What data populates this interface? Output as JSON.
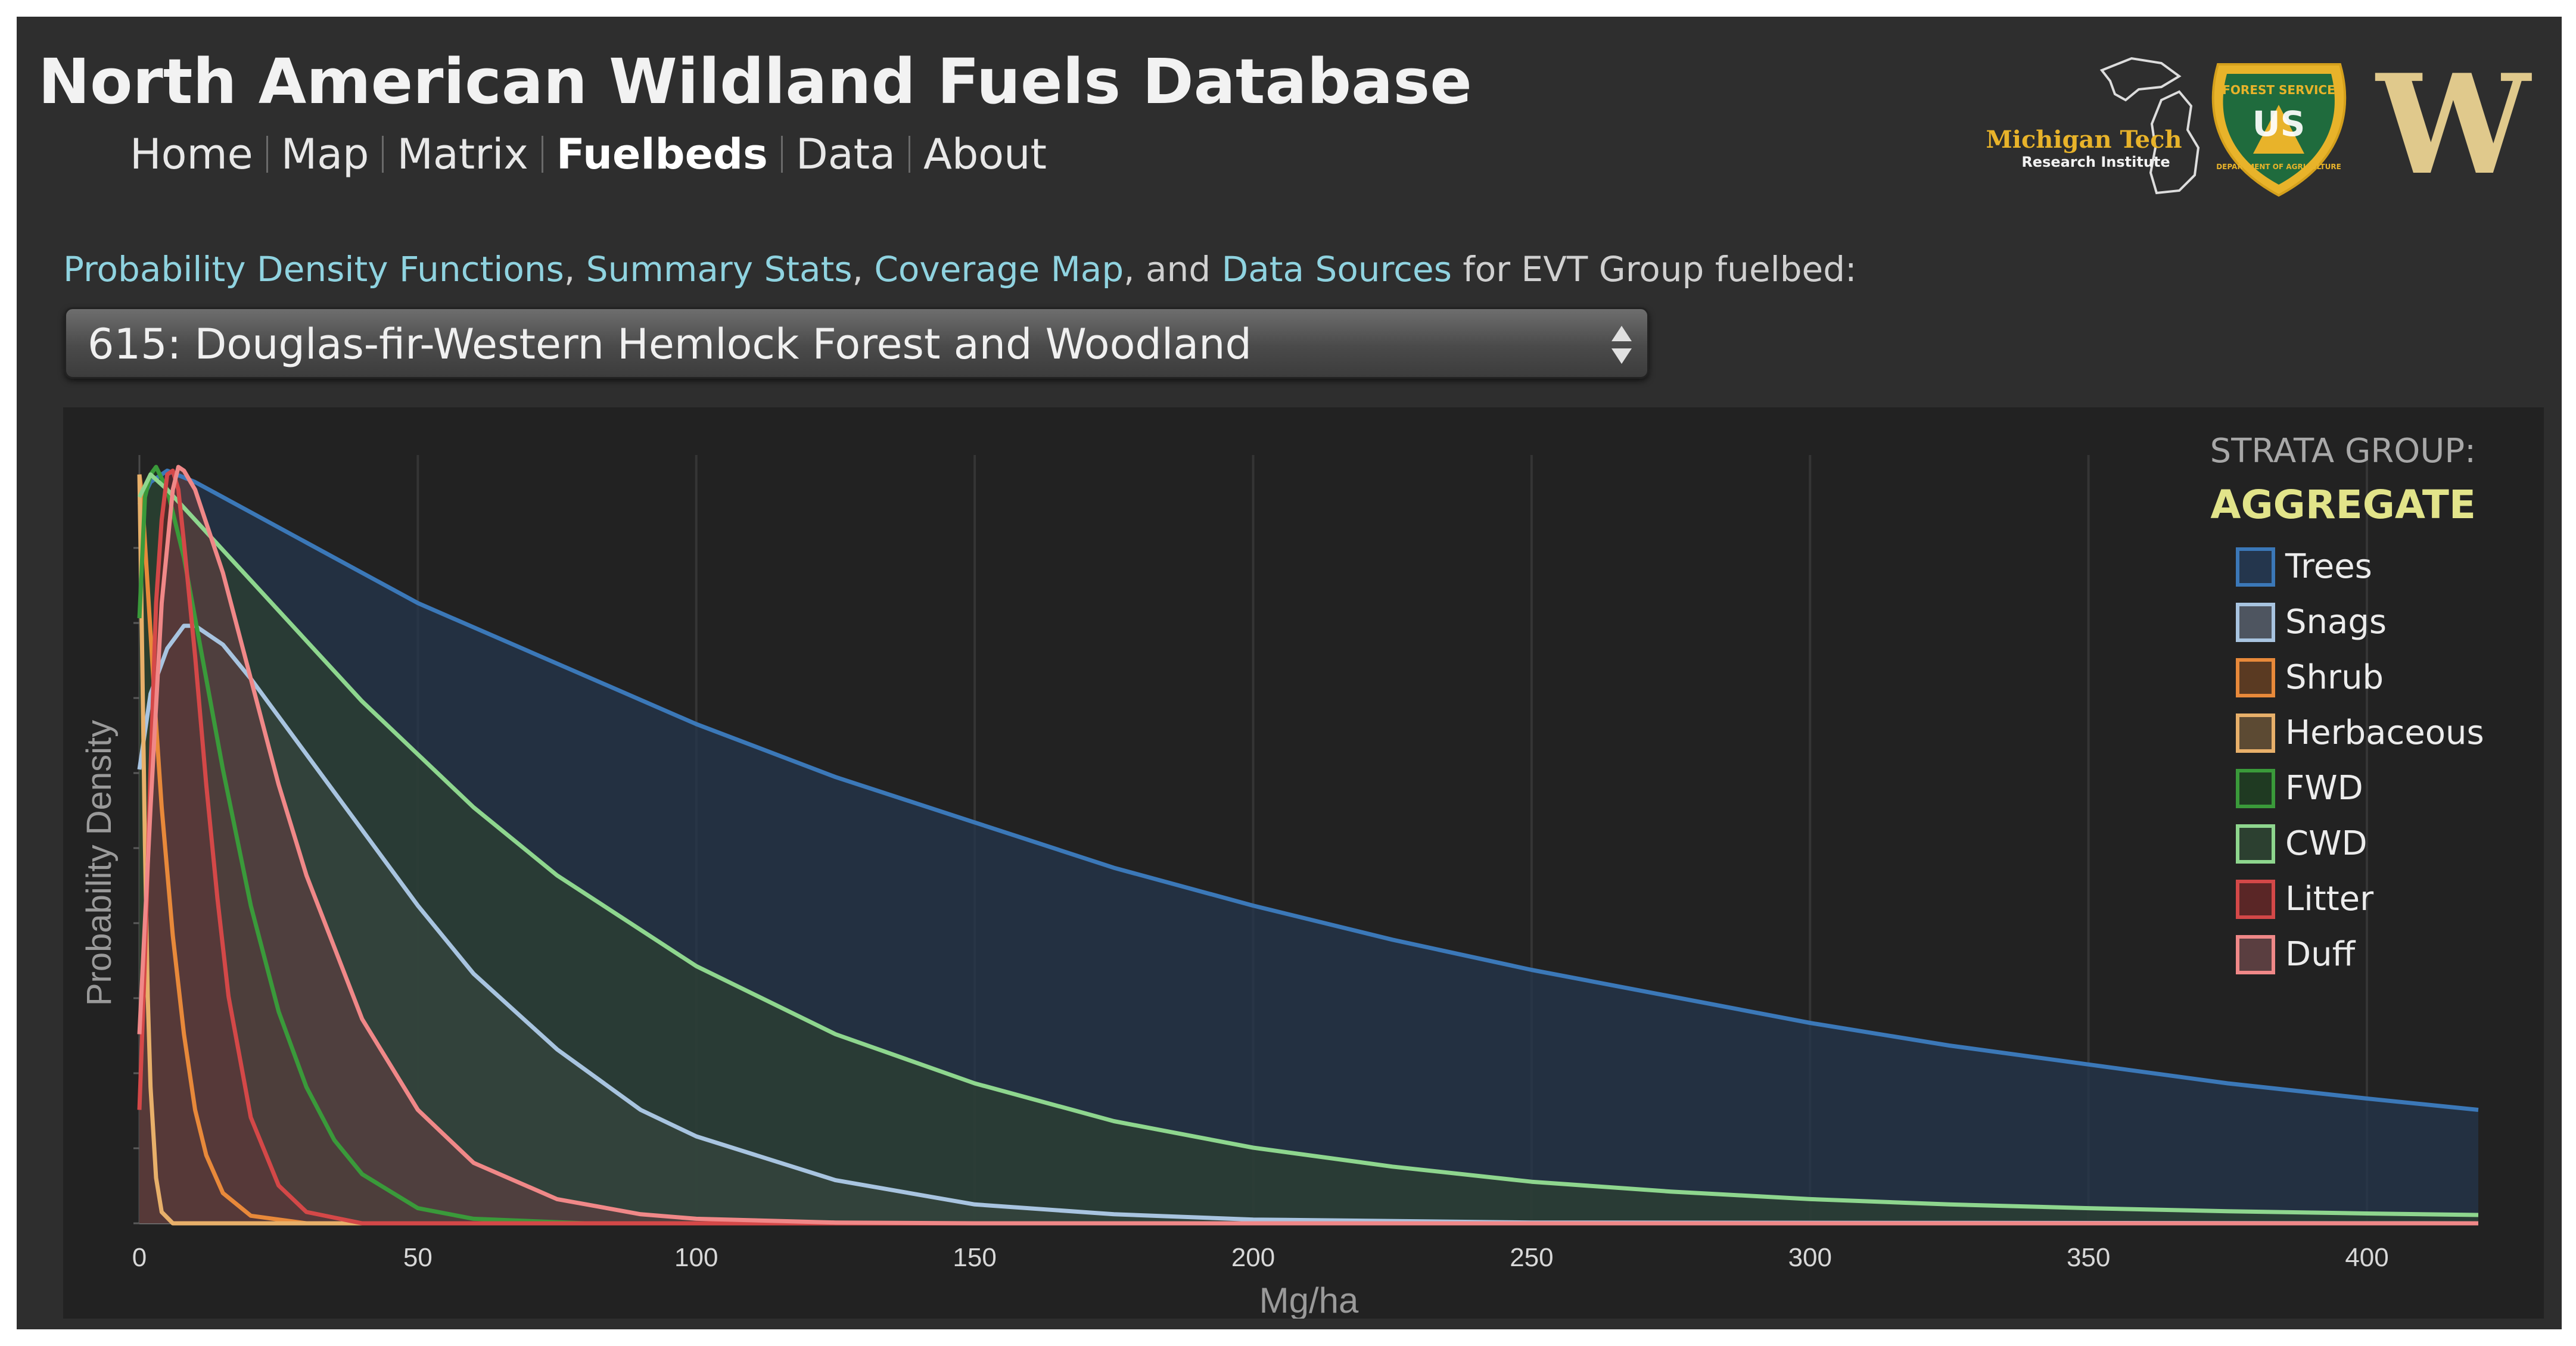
{
  "header": {
    "title": "North American Wildland Fuels Database",
    "nav": [
      "Home",
      "Map",
      "Matrix",
      "Fuelbeds",
      "Data",
      "About"
    ],
    "active_nav": "Fuelbeds",
    "logos": {
      "mtri_line1": "Michigan Tech",
      "mtri_line2": "Research Institute",
      "usfs_top": "FOREST SERVICE",
      "usfs_middle": "US",
      "usfs_bottom": "DEPARTMENT OF AGRICULTURE",
      "uw": "W"
    }
  },
  "intro": {
    "link_pdf": "Probability Density Functions",
    "sep1": ", ",
    "link_stats": "Summary Stats",
    "sep2": ", ",
    "link_map": "Coverage Map",
    "sep3": ", and ",
    "link_sources": "Data Sources",
    "suffix": " for EVT Group fuelbed:"
  },
  "fuelbed_select": {
    "value": "615: Douglas-fir-Western Hemlock Forest and Woodland"
  },
  "chart_data": {
    "type": "area",
    "title": "",
    "xlabel": "Mg/ha",
    "ylabel": "Probability Density",
    "xlim": [
      0,
      420
    ],
    "ylim": [
      0,
      1.0
    ],
    "xticks": [
      0,
      50,
      100,
      150,
      200,
      250,
      300,
      350,
      400
    ],
    "grid": true,
    "legend_title": "STRATA GROUP:",
    "legend_subtitle": "AGGREGATE",
    "legend_position": "right",
    "series": [
      {
        "name": "Trees",
        "color": "#3b78b8",
        "fill": "#24364d",
        "values": [
          [
            0,
            0.95
          ],
          [
            2,
            0.98
          ],
          [
            5,
            0.995
          ],
          [
            10,
            0.98
          ],
          [
            20,
            0.94
          ],
          [
            30,
            0.9
          ],
          [
            40,
            0.86
          ],
          [
            50,
            0.82
          ],
          [
            75,
            0.74
          ],
          [
            100,
            0.66
          ],
          [
            125,
            0.59
          ],
          [
            150,
            0.53
          ],
          [
            175,
            0.47
          ],
          [
            200,
            0.42
          ],
          [
            225,
            0.375
          ],
          [
            250,
            0.335
          ],
          [
            275,
            0.3
          ],
          [
            300,
            0.265
          ],
          [
            325,
            0.235
          ],
          [
            350,
            0.21
          ],
          [
            375,
            0.185
          ],
          [
            400,
            0.165
          ],
          [
            420,
            0.15
          ]
        ]
      },
      {
        "name": "Snags",
        "color": "#a8c4e0",
        "fill": "#4e5560",
        "values": [
          [
            0,
            0.6
          ],
          [
            2,
            0.7
          ],
          [
            5,
            0.76
          ],
          [
            8,
            0.79
          ],
          [
            10,
            0.79
          ],
          [
            15,
            0.765
          ],
          [
            20,
            0.72
          ],
          [
            30,
            0.62
          ],
          [
            40,
            0.52
          ],
          [
            50,
            0.42
          ],
          [
            60,
            0.33
          ],
          [
            75,
            0.23
          ],
          [
            90,
            0.15
          ],
          [
            100,
            0.115
          ],
          [
            125,
            0.057
          ],
          [
            150,
            0.025
          ],
          [
            175,
            0.012
          ],
          [
            200,
            0.005
          ],
          [
            250,
            0.001
          ],
          [
            420,
            0
          ]
        ]
      },
      {
        "name": "Shrub",
        "color": "#e8893a",
        "fill": "#5a3a22",
        "values": [
          [
            0,
            0.99
          ],
          [
            0.5,
            0.96
          ],
          [
            1,
            0.9
          ],
          [
            2,
            0.78
          ],
          [
            3,
            0.66
          ],
          [
            4,
            0.55
          ],
          [
            6,
            0.38
          ],
          [
            8,
            0.25
          ],
          [
            10,
            0.15
          ],
          [
            12,
            0.09
          ],
          [
            15,
            0.04
          ],
          [
            20,
            0.01
          ],
          [
            30,
            0
          ],
          [
            420,
            0
          ]
        ]
      },
      {
        "name": "Herbaceous",
        "color": "#e8b06a",
        "fill": "#5c4a33",
        "values": [
          [
            0,
            0.99
          ],
          [
            0.5,
            0.75
          ],
          [
            1,
            0.5
          ],
          [
            1.5,
            0.3
          ],
          [
            2,
            0.18
          ],
          [
            3,
            0.06
          ],
          [
            4,
            0.015
          ],
          [
            6,
            0
          ],
          [
            420,
            0
          ]
        ]
      },
      {
        "name": "FWD",
        "color": "#3a9a3a",
        "fill": "#1f3a22",
        "values": [
          [
            0,
            0.8
          ],
          [
            1,
            0.96
          ],
          [
            2,
            0.99
          ],
          [
            3,
            1.0
          ],
          [
            5,
            0.97
          ],
          [
            8,
            0.88
          ],
          [
            10,
            0.8
          ],
          [
            15,
            0.6
          ],
          [
            20,
            0.42
          ],
          [
            25,
            0.28
          ],
          [
            30,
            0.18
          ],
          [
            35,
            0.11
          ],
          [
            40,
            0.065
          ],
          [
            50,
            0.02
          ],
          [
            60,
            0.006
          ],
          [
            80,
            0
          ],
          [
            420,
            0
          ]
        ]
      },
      {
        "name": "CWD",
        "color": "#8ed68e",
        "fill": "#2c4030",
        "values": [
          [
            0,
            0.96
          ],
          [
            2,
            0.99
          ],
          [
            5,
            0.97
          ],
          [
            10,
            0.93
          ],
          [
            20,
            0.85
          ],
          [
            30,
            0.77
          ],
          [
            40,
            0.69
          ],
          [
            50,
            0.62
          ],
          [
            60,
            0.55
          ],
          [
            75,
            0.46
          ],
          [
            100,
            0.34
          ],
          [
            125,
            0.25
          ],
          [
            150,
            0.185
          ],
          [
            175,
            0.135
          ],
          [
            200,
            0.1
          ],
          [
            225,
            0.075
          ],
          [
            250,
            0.055
          ],
          [
            275,
            0.042
          ],
          [
            300,
            0.032
          ],
          [
            325,
            0.025
          ],
          [
            350,
            0.02
          ],
          [
            375,
            0.016
          ],
          [
            400,
            0.013
          ],
          [
            420,
            0.011
          ]
        ]
      },
      {
        "name": "Litter",
        "color": "#d44848",
        "fill": "#5a2626",
        "values": [
          [
            0,
            0.15
          ],
          [
            1,
            0.35
          ],
          [
            2,
            0.6
          ],
          [
            3,
            0.82
          ],
          [
            4,
            0.93
          ],
          [
            5,
            0.99
          ],
          [
            6,
            0.995
          ],
          [
            7,
            0.97
          ],
          [
            8,
            0.9
          ],
          [
            10,
            0.75
          ],
          [
            12,
            0.58
          ],
          [
            14,
            0.43
          ],
          [
            16,
            0.3
          ],
          [
            20,
            0.14
          ],
          [
            25,
            0.05
          ],
          [
            30,
            0.015
          ],
          [
            40,
            0
          ],
          [
            420,
            0
          ]
        ]
      },
      {
        "name": "Duff",
        "color": "#f08888",
        "fill": "#5a3e40",
        "values": [
          [
            0,
            0.25
          ],
          [
            2,
            0.55
          ],
          [
            4,
            0.82
          ],
          [
            6,
            0.97
          ],
          [
            7,
            1.0
          ],
          [
            8,
            0.995
          ],
          [
            10,
            0.97
          ],
          [
            15,
            0.86
          ],
          [
            20,
            0.72
          ],
          [
            25,
            0.58
          ],
          [
            30,
            0.46
          ],
          [
            40,
            0.27
          ],
          [
            50,
            0.15
          ],
          [
            60,
            0.08
          ],
          [
            75,
            0.032
          ],
          [
            90,
            0.012
          ],
          [
            100,
            0.006
          ],
          [
            125,
            0.001
          ],
          [
            150,
            0
          ],
          [
            420,
            0
          ]
        ]
      }
    ]
  }
}
